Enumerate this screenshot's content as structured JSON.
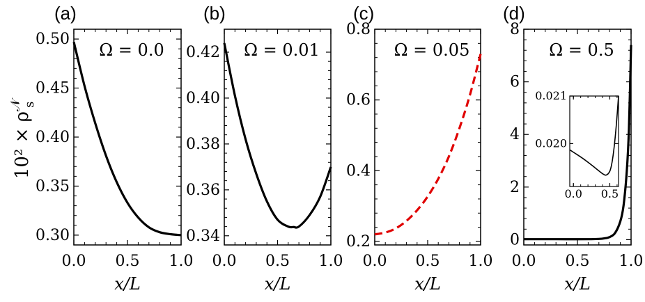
{
  "figure": {
    "ylabel": "10² × ρ",
    "ylabel_sup": "𝒩",
    "ylabel_sub": "s",
    "xlabel": "x/L"
  },
  "chart_data": [
    {
      "type": "line",
      "panel": "(a)",
      "annotation": "Ω = 0.0",
      "xlabel": "x/L",
      "xlim": [
        0.0,
        1.0
      ],
      "ylim": [
        0.29,
        0.51
      ],
      "xticks": [
        0.0,
        0.5,
        1.0
      ],
      "xtick_labels": [
        "0.0",
        "0.5",
        "1.0"
      ],
      "yticks": [
        0.3,
        0.35,
        0.4,
        0.45,
        0.5
      ],
      "ytick_labels": [
        "0.30",
        "0.35",
        "0.40",
        "0.45",
        "0.50"
      ],
      "series": [
        {
          "name": "Ω = 0.0",
          "color": "#000000",
          "dash": "solid",
          "x": [
            0.0,
            0.1,
            0.2,
            0.3,
            0.4,
            0.5,
            0.6,
            0.7,
            0.8,
            0.9,
            1.0
          ],
          "y": [
            0.497,
            0.452,
            0.414,
            0.381,
            0.354,
            0.333,
            0.318,
            0.308,
            0.303,
            0.301,
            0.3
          ]
        }
      ]
    },
    {
      "type": "line",
      "panel": "(b)",
      "annotation": "Ω = 0.01",
      "xlabel": "x/L",
      "xlim": [
        0.0,
        1.0
      ],
      "ylim": [
        0.336,
        0.43
      ],
      "xticks": [
        0.0,
        0.5,
        1.0
      ],
      "xtick_labels": [
        "0.0",
        "0.5",
        "1.0"
      ],
      "yticks": [
        0.34,
        0.36,
        0.38,
        0.4,
        0.42
      ],
      "ytick_labels": [
        "0.34",
        "0.36",
        "0.38",
        "0.40",
        "0.42"
      ],
      "series": [
        {
          "name": "Ω = 0.01",
          "color": "#000000",
          "dash": "solid",
          "x": [
            0.0,
            0.1,
            0.2,
            0.3,
            0.4,
            0.5,
            0.6,
            0.65,
            0.7,
            0.8,
            0.9,
            1.0
          ],
          "y": [
            0.424,
            0.401,
            0.382,
            0.367,
            0.355,
            0.347,
            0.344,
            0.3438,
            0.344,
            0.349,
            0.357,
            0.37
          ]
        }
      ]
    },
    {
      "type": "line",
      "panel": "(c)",
      "annotation": "Ω = 0.05",
      "xlabel": "x/L",
      "xlim": [
        0.0,
        1.0
      ],
      "ylim": [
        0.19,
        0.8
      ],
      "xticks": [
        0.0,
        0.5,
        1.0
      ],
      "xtick_labels": [
        "0.0",
        "0.5",
        "1.0"
      ],
      "yticks": [
        0.2,
        0.4,
        0.6,
        0.8
      ],
      "ytick_labels": [
        "0.2",
        "0.4",
        "0.6",
        "0.8"
      ],
      "series": [
        {
          "name": "Ω = 0.05",
          "color": "#e00000",
          "dash": "dashed",
          "x": [
            0.0,
            0.1,
            0.2,
            0.3,
            0.4,
            0.5,
            0.6,
            0.7,
            0.8,
            0.9,
            1.0
          ],
          "y": [
            0.22,
            0.225,
            0.237,
            0.258,
            0.288,
            0.327,
            0.377,
            0.44,
            0.52,
            0.615,
            0.73
          ]
        }
      ]
    },
    {
      "type": "line",
      "panel": "(d)",
      "annotation": "Ω = 0.5",
      "xlabel": "x/L",
      "xlim": [
        0.0,
        1.0
      ],
      "ylim": [
        -0.2,
        8.0
      ],
      "xticks": [
        0.0,
        0.5,
        1.0
      ],
      "xtick_labels": [
        "0.0",
        "0.5",
        "1.0"
      ],
      "yticks": [
        0,
        2,
        4,
        6,
        8
      ],
      "ytick_labels": [
        "0",
        "2",
        "4",
        "6",
        "8"
      ],
      "series": [
        {
          "name": "Ω = 0.5",
          "color": "#000000",
          "dash": "solid",
          "x": [
            0.0,
            0.2,
            0.4,
            0.6,
            0.7,
            0.75,
            0.8,
            0.85,
            0.9,
            0.93,
            0.96,
            0.98,
            1.0
          ],
          "y": [
            0.02,
            0.02,
            0.019,
            0.02,
            0.03,
            0.05,
            0.1,
            0.25,
            0.7,
            1.3,
            2.6,
            4.2,
            7.4
          ]
        }
      ],
      "inset": {
        "type": "line",
        "xlim": [
          -0.05,
          0.62
        ],
        "ylim": [
          0.0191,
          0.021
        ],
        "xticks": [
          0.0,
          0.5
        ],
        "xtick_labels": [
          "0.0",
          "0.5"
        ],
        "yticks": [
          0.02,
          0.021
        ],
        "ytick_labels": [
          "0.020",
          "0.021"
        ],
        "series": [
          {
            "name": "Ω = 0.5 (zoom)",
            "color": "#000000",
            "dash": "solid",
            "x": [
              -0.05,
              0.0,
              0.1,
              0.2,
              0.3,
              0.4,
              0.45,
              0.5,
              0.53,
              0.56,
              0.59,
              0.62
            ],
            "y": [
              0.01987,
              0.01982,
              0.01972,
              0.01961,
              0.01949,
              0.01937,
              0.01934,
              0.01942,
              0.0196,
              0.01993,
              0.0204,
              0.021
            ]
          }
        ]
      }
    }
  ]
}
